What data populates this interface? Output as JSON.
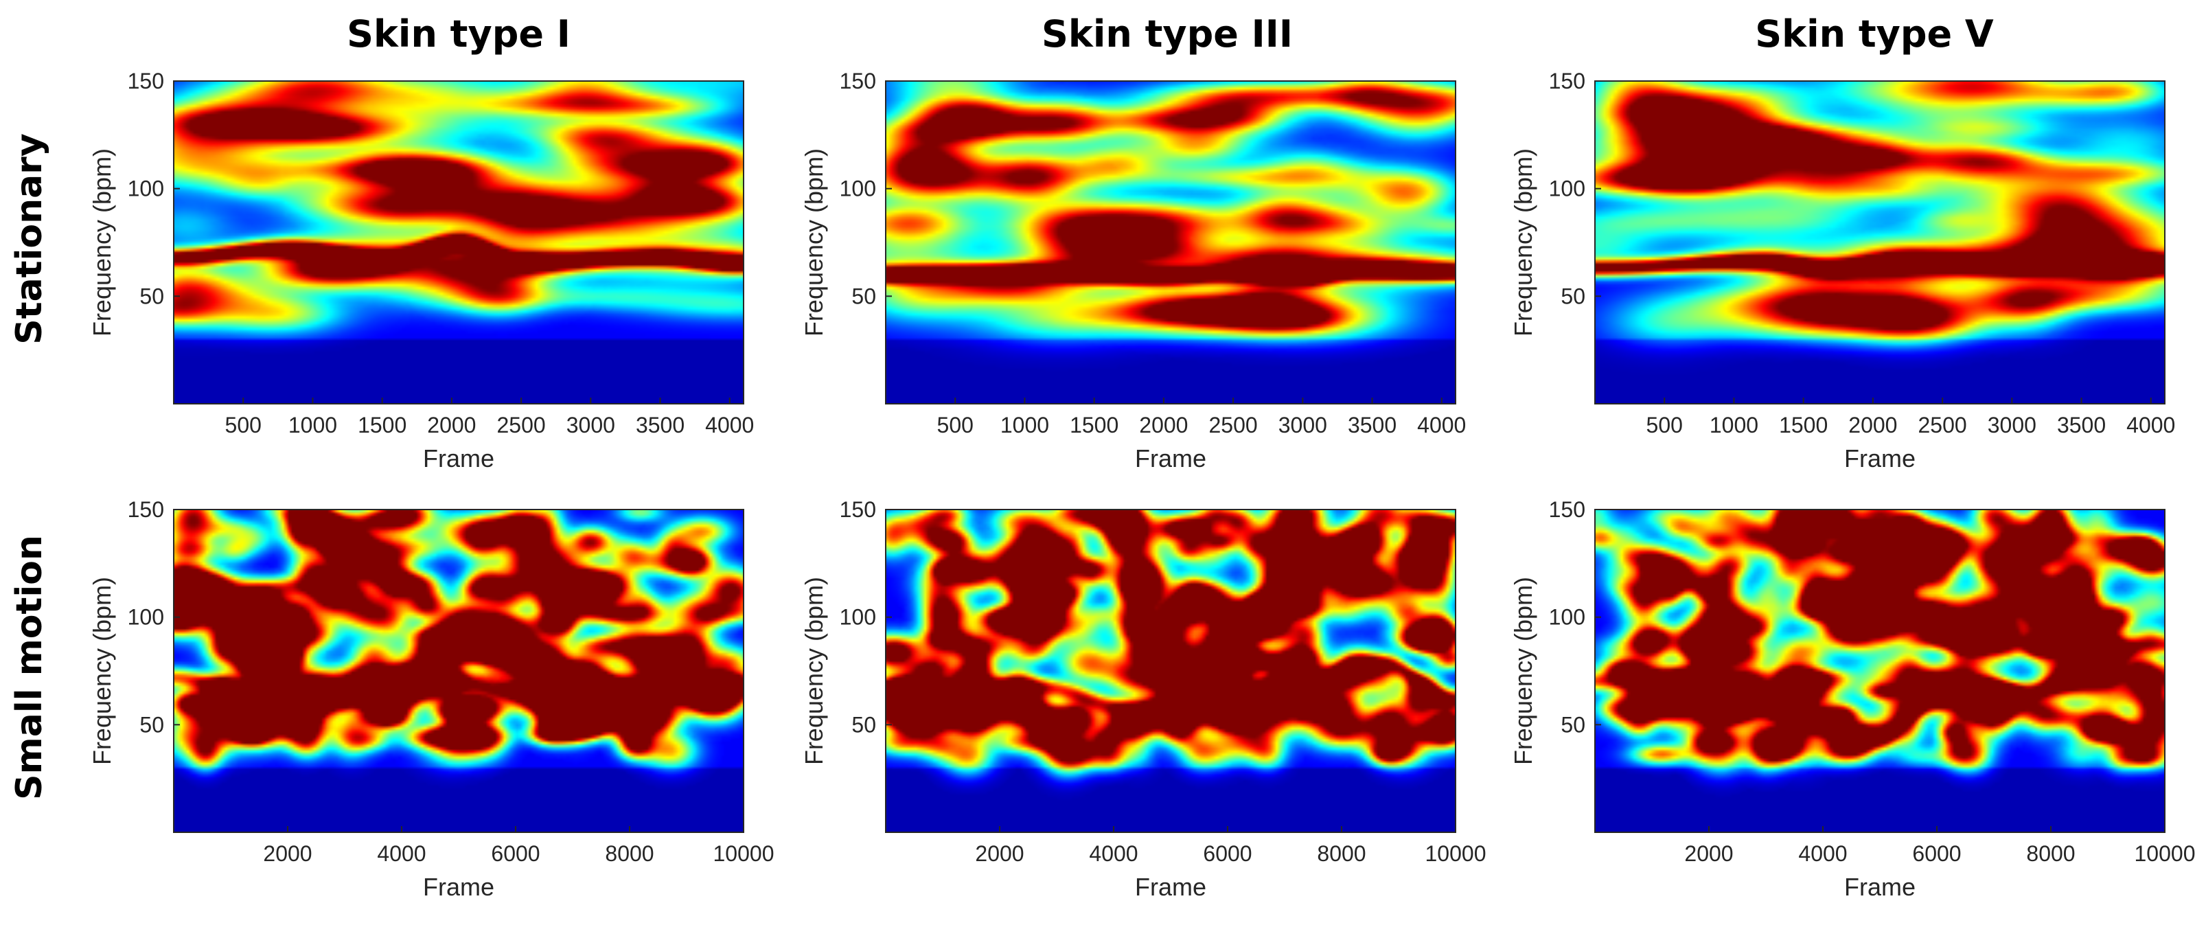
{
  "figure": {
    "column_titles": [
      "Skin type I",
      "Skin type III",
      "Skin type V"
    ],
    "row_titles": [
      "Stationary",
      "Small motion"
    ]
  },
  "colors": {
    "colormap": "jet",
    "background_low": "#00008f",
    "ridge": "#b40000"
  },
  "chart_data": [
    {
      "type": "heatmap",
      "row": 0,
      "col": 0,
      "title": "",
      "xlabel": "Frame",
      "ylabel": "Frequency (bpm)",
      "xlim": [
        0,
        4100
      ],
      "ylim": [
        0,
        150
      ],
      "xticks": [
        500,
        1000,
        1500,
        2000,
        2500,
        3000,
        3500,
        4000
      ],
      "yticks": [
        50,
        100,
        150
      ],
      "ridge": {
        "frames": [
          0,
          800,
          1500,
          2050,
          2500,
          3500,
          4100
        ],
        "bpm": [
          68,
          72,
          67,
          75,
          66,
          68,
          65
        ]
      },
      "texture": "smooth",
      "seed": 11
    },
    {
      "type": "heatmap",
      "row": 0,
      "col": 1,
      "title": "",
      "xlabel": "Frame",
      "ylabel": "Frequency (bpm)",
      "xlim": [
        0,
        4100
      ],
      "ylim": [
        0,
        150
      ],
      "xticks": [
        500,
        1000,
        1500,
        2000,
        2500,
        3000,
        3500,
        4000
      ],
      "yticks": [
        50,
        100,
        150
      ],
      "ridge": {
        "frames": [
          0,
          1000,
          2000,
          2500,
          3000,
          3400,
          4100
        ],
        "bpm": [
          60,
          61,
          59,
          60,
          59,
          62,
          61
        ]
      },
      "texture": "smooth",
      "seed": 23
    },
    {
      "type": "heatmap",
      "row": 0,
      "col": 2,
      "title": "",
      "xlabel": "Frame",
      "ylabel": "Frequency (bpm)",
      "xlim": [
        0,
        4100
      ],
      "ylim": [
        0,
        150
      ],
      "xticks": [
        500,
        1000,
        1500,
        2000,
        2500,
        3000,
        3500,
        4000
      ],
      "yticks": [
        50,
        100,
        150
      ],
      "ridge": {
        "frames": [
          0,
          1200,
          1700,
          2300,
          3000,
          4100
        ],
        "bpm": [
          63,
          66,
          63,
          66,
          64,
          65
        ]
      },
      "texture": "smooth",
      "seed": 37
    },
    {
      "type": "heatmap",
      "row": 1,
      "col": 0,
      "title": "",
      "xlabel": "Frame",
      "ylabel": "Frequency (bpm)",
      "xlim": [
        0,
        10000
      ],
      "ylim": [
        0,
        150
      ],
      "xticks": [
        2000,
        4000,
        6000,
        8000,
        10000
      ],
      "yticks": [
        50,
        100,
        150
      ],
      "ridge": {
        "frames": [
          0,
          1200,
          2500,
          4300,
          6000,
          8200,
          10000
        ],
        "bpm": [
          72,
          66,
          58,
          73,
          66,
          68,
          70
        ]
      },
      "texture": "patchy",
      "seed": 53
    },
    {
      "type": "heatmap",
      "row": 1,
      "col": 1,
      "title": "",
      "xlabel": "Frame",
      "ylabel": "Frequency (bpm)",
      "xlim": [
        0,
        10000
      ],
      "ylim": [
        0,
        150
      ],
      "xticks": [
        2000,
        4000,
        6000,
        8000,
        10000
      ],
      "yticks": [
        50,
        100,
        150
      ],
      "ridge": {
        "frames": [
          0,
          2600,
          4400,
          6000,
          8800,
          9900
        ],
        "bpm": [
          65,
          68,
          57,
          62,
          78,
          62
        ]
      },
      "texture": "patchy",
      "seed": 71
    },
    {
      "type": "heatmap",
      "row": 1,
      "col": 2,
      "title": "",
      "xlabel": "Frame",
      "ylabel": "Frequency (bpm)",
      "xlim": [
        0,
        10000
      ],
      "ylim": [
        0,
        150
      ],
      "xticks": [
        2000,
        4000,
        6000,
        8000,
        10000
      ],
      "yticks": [
        50,
        100,
        150
      ],
      "ridge": {
        "frames": [
          0,
          1100,
          5000,
          6000,
          7500,
          9700
        ],
        "bpm": [
          70,
          72,
          45,
          63,
          65,
          87
        ]
      },
      "texture": "patchy",
      "seed": 89
    }
  ]
}
